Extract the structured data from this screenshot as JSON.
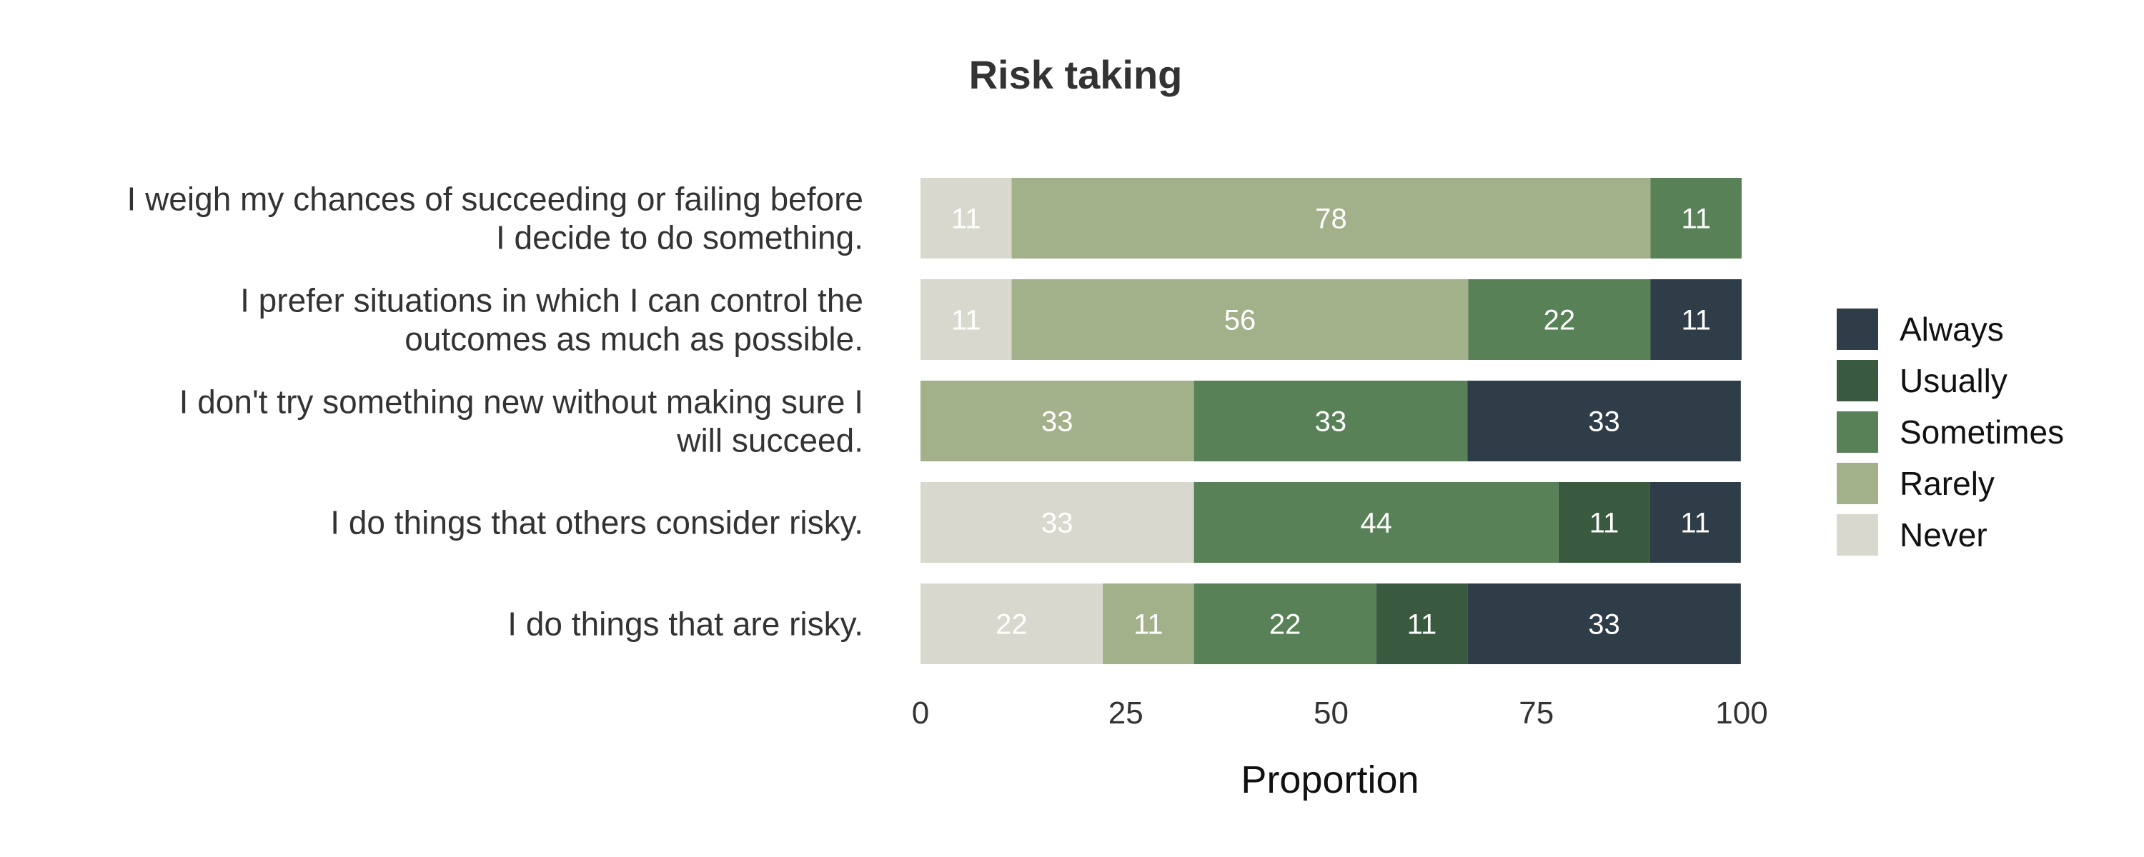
{
  "chart_data": {
    "type": "bar",
    "orientation": "horizontal",
    "stacked": true,
    "title": "Risk taking",
    "xlabel": "Proportion",
    "ylabel": "",
    "xlim": [
      0,
      100
    ],
    "xticks": [
      "0",
      "25",
      "50",
      "75",
      "100"
    ],
    "grid": false,
    "legend_position": "right",
    "categories": [
      [
        "I weigh my chances of succeeding or failing before",
        "I decide to do something."
      ],
      [
        "I prefer situations in which I can control the",
        "outcomes as much as possible."
      ],
      [
        "I don't try something new without making sure I",
        "will succeed."
      ],
      [
        "I do things that others consider risky."
      ],
      [
        "I do things that are risky."
      ]
    ],
    "series": [
      {
        "name": "Never",
        "color": "#d9d8ce",
        "values": [
          11.1,
          11.1,
          0,
          33.3,
          22.2
        ]
      },
      {
        "name": "Rarely",
        "color": "#a3b18a",
        "values": [
          77.8,
          55.6,
          33.3,
          0,
          11.1
        ]
      },
      {
        "name": "Sometimes",
        "color": "#588157",
        "values": [
          11.1,
          22.2,
          33.3,
          44.4,
          22.2
        ]
      },
      {
        "name": "Usually",
        "color": "#3a5a40",
        "values": [
          0,
          0,
          0,
          11.1,
          11.1
        ]
      },
      {
        "name": "Always",
        "color": "#2f3d48",
        "values": [
          0,
          11.1,
          33.3,
          11.1,
          33.3
        ]
      }
    ],
    "data_labels": [
      [
        "11",
        "78",
        "11",
        "",
        ""
      ],
      [
        "11",
        "56",
        "22",
        "",
        "11"
      ],
      [
        "",
        "33",
        "33",
        "",
        "33"
      ],
      [
        "33",
        "",
        "44",
        "11",
        "11"
      ],
      [
        "22",
        "11",
        "22",
        "11",
        "33"
      ]
    ],
    "legend": {
      "entries": [
        "Always",
        "Usually",
        "Sometimes",
        "Rarely",
        "Never"
      ]
    }
  }
}
